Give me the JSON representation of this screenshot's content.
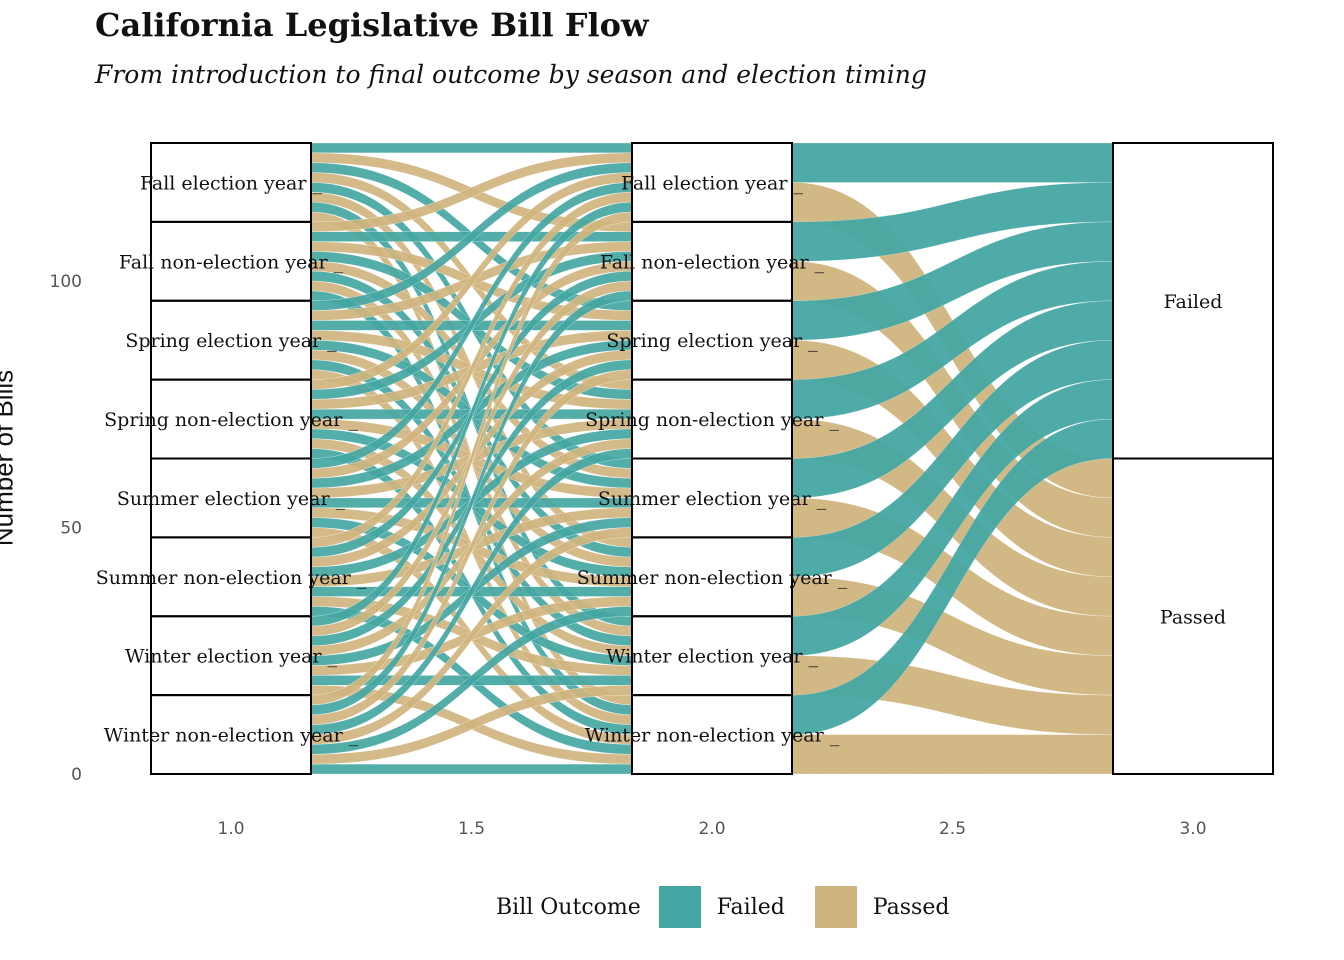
{
  "title": "California Legislative Bill Flow",
  "subtitle": "From introduction to final outcome by season and election timing",
  "legend": {
    "title": "Bill Outcome",
    "items": [
      {
        "label": "Failed",
        "color": "#44a6a2"
      },
      {
        "label": "Passed",
        "color": "#d0b47e"
      }
    ]
  },
  "colors": {
    "Failed": "#44a6a2",
    "Passed": "#d0b47e",
    "stratum_stroke": "#000000"
  },
  "chart_data": {
    "type": "alluvial",
    "ylabel": "Number of Bills",
    "xlabel": "",
    "ylim": [
      0,
      128
    ],
    "yticks": [
      0,
      50,
      100
    ],
    "xticks": [
      "1.0",
      "1.5",
      "2.0",
      "2.5",
      "3.0"
    ],
    "axes": [
      {
        "position": 1.0,
        "strata": [
          {
            "label": "Fall election year _",
            "count": 16
          },
          {
            "label": "Fall non-election year _",
            "count": 16
          },
          {
            "label": "Spring election year _",
            "count": 16
          },
          {
            "label": "Spring non-election year _",
            "count": 16
          },
          {
            "label": "Summer election year _",
            "count": 16
          },
          {
            "label": "Summer non-election year _",
            "count": 16
          },
          {
            "label": "Winter election year _",
            "count": 16
          },
          {
            "label": "Winter non-election year _",
            "count": 16
          }
        ]
      },
      {
        "position": 2.0,
        "strata": [
          {
            "label": "Fall election year _",
            "count": 16,
            "failed": 8,
            "passed": 8
          },
          {
            "label": "Fall non-election year _",
            "count": 16,
            "failed": 8,
            "passed": 8
          },
          {
            "label": "Spring election year _",
            "count": 16,
            "failed": 8,
            "passed": 8
          },
          {
            "label": "Spring non-election year _",
            "count": 16,
            "failed": 8,
            "passed": 8
          },
          {
            "label": "Summer election year _",
            "count": 16,
            "failed": 8,
            "passed": 8
          },
          {
            "label": "Summer non-election year _",
            "count": 16,
            "failed": 8,
            "passed": 8
          },
          {
            "label": "Winter election year _",
            "count": 16,
            "failed": 8,
            "passed": 8
          },
          {
            "label": "Winter non-election year _",
            "count": 16,
            "failed": 8,
            "passed": 8
          }
        ]
      },
      {
        "position": 3.0,
        "strata": [
          {
            "label": "Failed",
            "count": 64
          },
          {
            "label": "Passed",
            "count": 64
          }
        ]
      }
    ]
  }
}
